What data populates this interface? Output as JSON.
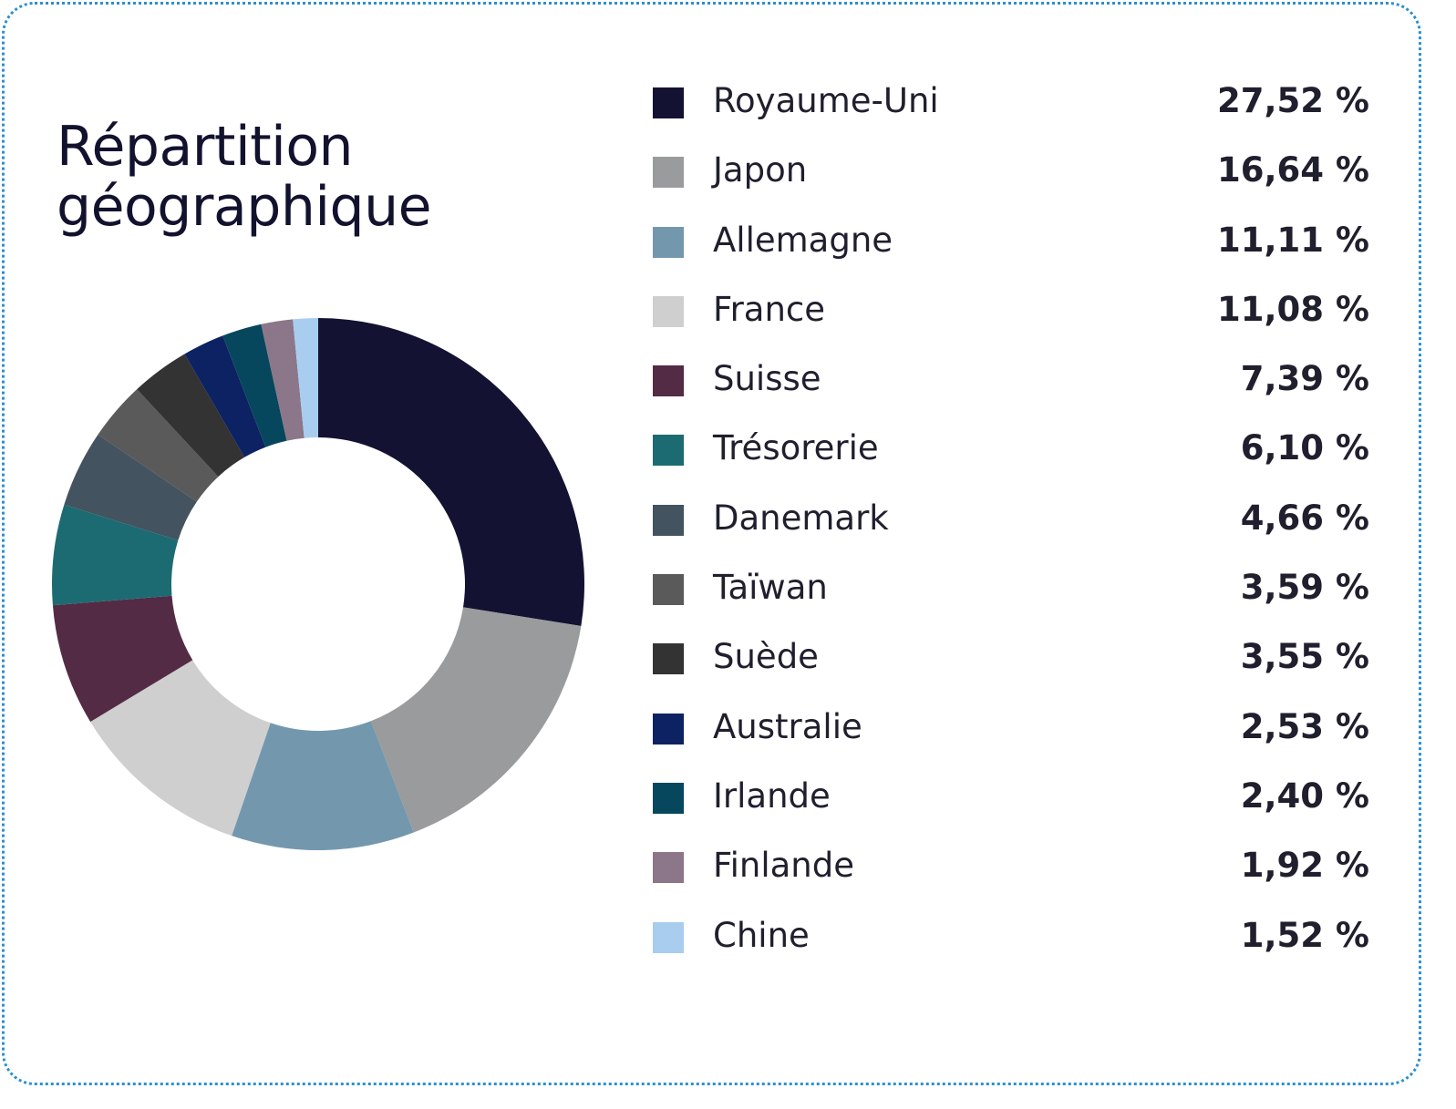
{
  "title_line1": "Répartition",
  "title_line2": "géographique",
  "chart_data": {
    "type": "pie",
    "title": "Répartition géographique",
    "style": "donut",
    "categories": [
      "Royaume-Uni",
      "Japon",
      "Allemagne",
      "France",
      "Suisse",
      "Trésorerie",
      "Danemark",
      "Taïwan",
      "Suède",
      "Australie",
      "Irlande",
      "Finlande",
      "Chine"
    ],
    "values": [
      27.52,
      16.64,
      11.11,
      11.08,
      7.39,
      6.1,
      4.66,
      3.59,
      3.55,
      2.53,
      2.4,
      1.92,
      1.52
    ],
    "value_labels": [
      "27,52 %",
      "16,64 %",
      "11,11 %",
      "11,08 %",
      "7,39 %",
      "6,10 %",
      "4,66 %",
      "3,59 %",
      "3,55 %",
      "2,53 %",
      "2,40 %",
      "1,92 %",
      "1,52 %"
    ],
    "colors": [
      "#131232",
      "#9a9b9d",
      "#7398ae",
      "#cfcfd0",
      "#532b45",
      "#1d6b72",
      "#43535f",
      "#5a5a5b",
      "#333333",
      "#0d2262",
      "#06475d",
      "#8c7689",
      "#a8cdee"
    ],
    "legend": "right"
  }
}
